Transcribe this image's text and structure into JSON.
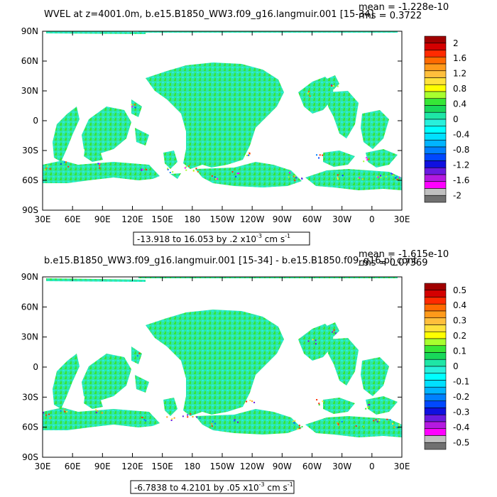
{
  "panels": [
    {
      "title": "WVEL at z=4001.0m, b.e15.B1850_WW3.f09_g16.langmuir.001 [15-34]",
      "mean_text": "mean = -1.228e-10",
      "rms_text": "rms = 0.3722",
      "range_text": "-13.918 to 16.053 by .2 x10",
      "range_exp": "-3",
      "range_unit": "cm s",
      "range_unit_exp": "-1",
      "colorbar": {
        "labels": [
          "2",
          "1.6",
          "1.2",
          "0.8",
          "0.4",
          "0",
          "-0.4",
          "-0.8",
          "-1.2",
          "-1.6",
          "-2"
        ],
        "colors": [
          "#a00000",
          "#d40000",
          "#ff2a00",
          "#ff6a00",
          "#ff9a1a",
          "#ffbf3c",
          "#ffe23c",
          "#ffff00",
          "#a8ff2e",
          "#36e636",
          "#18d85a",
          "#1ee6a6",
          "#28f0dc",
          "#00ffff",
          "#00e0ff",
          "#00b4ff",
          "#0080ff",
          "#0048ff",
          "#1010e0",
          "#6a1ae0",
          "#b41ae0",
          "#ff00ff",
          "#c0c0c0",
          "#707070"
        ]
      },
      "noise_colors": [
        "#ff2a00",
        "#ff6a00",
        "#ffe23c",
        "#a8ff2e",
        "#0080ff",
        "#0048ff",
        "#6a1ae0",
        "#ff00ff"
      ]
    },
    {
      "title": "b.e15.B1850_WW3.f09_g16.langmuir.001 [15-34] - b.e15.B1850.f09_g16.pi_cont",
      "mean_text": "mean = -1.615e-10",
      "rms_text": "rms = 0.07369",
      "range_text": "-6.7838 to 4.2101 by .05 x10",
      "range_exp": "-3",
      "range_unit": "cm s",
      "range_unit_exp": "-1",
      "colorbar": {
        "labels": [
          "0.5",
          "0.4",
          "0.3",
          "0.2",
          "0.1",
          "0",
          "-0.1",
          "-0.2",
          "-0.3",
          "-0.4",
          "-0.5"
        ],
        "colors": [
          "#a00000",
          "#d40000",
          "#ff2a00",
          "#ff6a00",
          "#ff9a1a",
          "#ffbf3c",
          "#ffe23c",
          "#ffff00",
          "#a8ff2e",
          "#36e636",
          "#18d85a",
          "#1ee6a6",
          "#28f0dc",
          "#00ffff",
          "#00e0ff",
          "#00b4ff",
          "#0080ff",
          "#0048ff",
          "#1010e0",
          "#6a1ae0",
          "#b41ae0",
          "#ff00ff",
          "#c0c0c0",
          "#707070"
        ]
      },
      "noise_colors": [
        "#ff2a00",
        "#ff9a1a",
        "#ffe23c",
        "#36e636",
        "#0080ff",
        "#6a1ae0"
      ]
    }
  ],
  "axes": {
    "lat_labels": [
      "90N",
      "60N",
      "30N",
      "0",
      "30S",
      "60S",
      "90S"
    ],
    "lon_labels": [
      "30E",
      "60E",
      "90E",
      "120E",
      "150E",
      "180",
      "150W",
      "120W",
      "90W",
      "60W",
      "30W",
      "0",
      "30E"
    ]
  },
  "map_colors": {
    "base": "#2ee6a6",
    "alt1": "#36e636",
    "alt2": "#28f0dc"
  }
}
